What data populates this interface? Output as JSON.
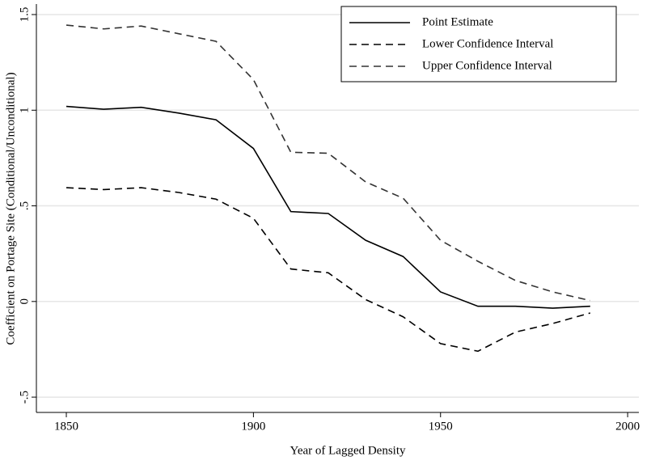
{
  "chart_data": {
    "type": "line",
    "x_label": "Year of Lagged Density",
    "y_label": "Coefficient on Portage Site (Conditional/Unconditional)",
    "x": [
      1850,
      1860,
      1870,
      1880,
      1890,
      1900,
      1910,
      1920,
      1930,
      1940,
      1950,
      1960,
      1970,
      1980,
      1990
    ],
    "series": [
      {
        "name": "Point Estimate",
        "color": "#000000",
        "dash": "solid",
        "values": [
          1.02,
          1.005,
          1.015,
          0.985,
          0.95,
          0.8,
          0.47,
          0.46,
          0.32,
          0.235,
          0.05,
          -0.025,
          -0.025,
          -0.035,
          -0.025
        ]
      },
      {
        "name": "Lower Confidence Interval",
        "color": "#000000",
        "dash": "dashed",
        "values": [
          0.595,
          0.585,
          0.595,
          0.57,
          0.535,
          0.435,
          0.17,
          0.15,
          0.01,
          -0.08,
          -0.22,
          -0.26,
          -0.16,
          -0.115,
          -0.06
        ]
      },
      {
        "name": "Upper Confidence Interval",
        "color": "#333333",
        "dash": "dashed",
        "values": [
          1.445,
          1.425,
          1.44,
          1.4,
          1.36,
          1.16,
          0.78,
          0.775,
          0.625,
          0.54,
          0.32,
          0.21,
          0.11,
          0.05,
          0.005
        ]
      }
    ],
    "xlim": [
      1842,
      2003
    ],
    "xticks": [
      1850,
      1900,
      1950,
      2000
    ],
    "ylim": [
      -0.58,
      1.555
    ],
    "yticks": [
      {
        "value": -0.5,
        "label": "-.5"
      },
      0,
      {
        "value": 0.5,
        "label": ".5"
      },
      1,
      {
        "value": 1.5,
        "label": "1.5"
      }
    ],
    "grid": true,
    "legend": "upper right"
  }
}
